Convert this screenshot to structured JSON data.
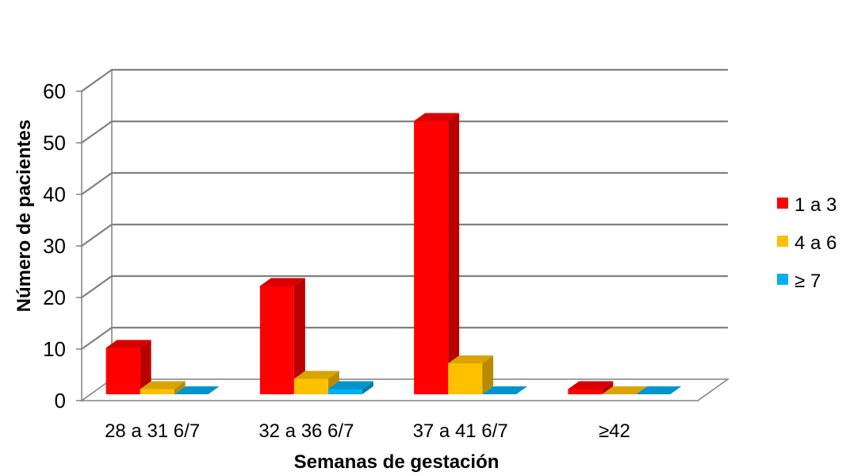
{
  "chart_data": {
    "type": "bar",
    "title": "",
    "xlabel": "Semanas de gestación",
    "ylabel": "Número de pacientes",
    "categories": [
      "28 a 31 6/7",
      "32 a 36 6/7",
      "37 a 41 6/7",
      "≥42"
    ],
    "series": [
      {
        "name": "1 a 3",
        "values": [
          9,
          21,
          53,
          1
        ],
        "color": "#ff0000"
      },
      {
        "name": "4 a 6",
        "values": [
          1,
          3,
          6,
          0
        ],
        "color": "#ffc000"
      },
      {
        "name": "≥ 7",
        "values": [
          0,
          1,
          0,
          0
        ],
        "color": "#00b0f0"
      }
    ],
    "ylim": [
      0,
      60
    ],
    "yticks": [
      "0",
      "10",
      "20",
      "30",
      "40",
      "50",
      "60"
    ],
    "grid": true,
    "style": "3d-clustered-column",
    "legend_position": "right"
  }
}
